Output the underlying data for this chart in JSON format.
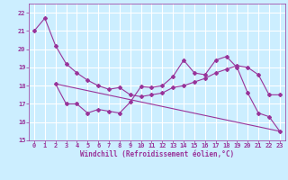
{
  "xlabel": "Windchill (Refroidissement éolien,°C)",
  "bg_color": "#cceeff",
  "grid_color": "#ffffff",
  "line_color": "#993399",
  "ylim": [
    15,
    22.5
  ],
  "xlim": [
    -0.5,
    23.5
  ],
  "yticks": [
    15,
    16,
    17,
    18,
    19,
    20,
    21,
    22
  ],
  "xticks": [
    0,
    1,
    2,
    3,
    4,
    5,
    6,
    7,
    8,
    9,
    10,
    11,
    12,
    13,
    14,
    15,
    16,
    17,
    18,
    19,
    20,
    21,
    22,
    23
  ],
  "curve1_x": [
    0,
    1,
    2,
    3,
    4,
    5,
    6,
    7,
    8,
    9,
    10,
    11,
    12,
    13,
    14,
    15,
    16,
    17,
    18,
    19,
    20,
    21,
    22,
    23
  ],
  "curve1_y": [
    21.0,
    21.7,
    20.2,
    19.2,
    18.7,
    18.3,
    18.0,
    17.8,
    17.9,
    17.5,
    17.4,
    17.5,
    17.6,
    17.9,
    18.0,
    18.2,
    18.4,
    18.7,
    18.9,
    19.1,
    19.0,
    18.6,
    17.5,
    17.5
  ],
  "curve2_x": [
    2,
    3,
    4,
    5,
    6,
    7,
    8,
    9,
    10,
    11,
    12,
    13,
    14,
    15,
    16,
    17,
    18,
    19,
    20,
    21,
    22,
    23
  ],
  "curve2_y": [
    18.1,
    17.0,
    17.0,
    16.5,
    16.7,
    16.6,
    16.5,
    17.1,
    17.95,
    17.9,
    18.0,
    18.5,
    19.4,
    18.7,
    18.6,
    19.4,
    19.6,
    19.0,
    17.6,
    16.5,
    16.3,
    15.5
  ],
  "curve3_x": [
    2,
    23
  ],
  "curve3_y": [
    18.1,
    15.5
  ]
}
